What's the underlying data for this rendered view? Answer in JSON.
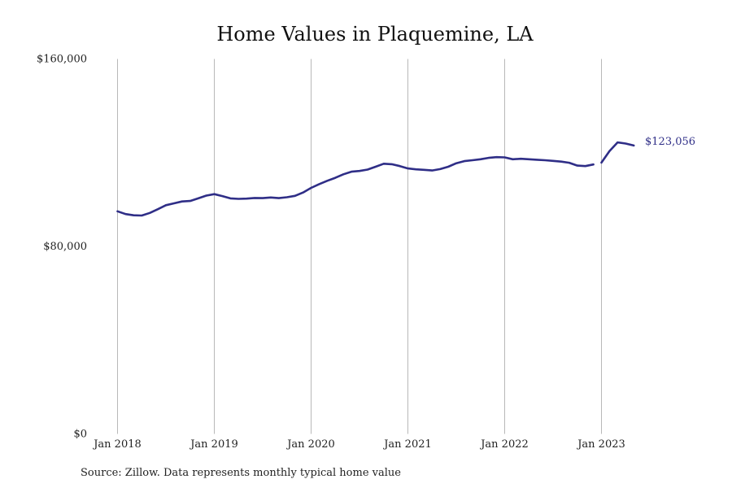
{
  "chart_data": {
    "type": "line",
    "title": "Home Values in Plaquemine, LA",
    "xlabel": "",
    "ylabel": "",
    "source": "Source: Zillow. Data represents monthly typical home value",
    "ylim": [
      0,
      160000
    ],
    "y_ticks": [
      {
        "value": 0,
        "label": "$0"
      },
      {
        "value": 80000,
        "label": "$80,000"
      },
      {
        "value": 160000,
        "label": "$160,000"
      }
    ],
    "x_ticks": [
      {
        "date": "2018-01",
        "label": "Jan 2018"
      },
      {
        "date": "2019-01",
        "label": "Jan 2019"
      },
      {
        "date": "2020-01",
        "label": "Jan 2020"
      },
      {
        "date": "2021-01",
        "label": "Jan 2021"
      },
      {
        "date": "2022-01",
        "label": "Jan 2022"
      },
      {
        "date": "2023-01",
        "label": "Jan 2023"
      }
    ],
    "x_grid": true,
    "y_grid": false,
    "line_color": "#2f2e87",
    "end_label": "$123,056",
    "series": [
      {
        "segments": [
          {
            "x": [
              "2018-01",
              "2018-02",
              "2018-03",
              "2018-04",
              "2018-05",
              "2018-06",
              "2018-07",
              "2018-08",
              "2018-09",
              "2018-10",
              "2018-11",
              "2018-12",
              "2019-01",
              "2019-02",
              "2019-03",
              "2019-04",
              "2019-05",
              "2019-06",
              "2019-07",
              "2019-08",
              "2019-09",
              "2019-10",
              "2019-11",
              "2019-12",
              "2020-01",
              "2020-02",
              "2020-03",
              "2020-04",
              "2020-05",
              "2020-06",
              "2020-07",
              "2020-08",
              "2020-09",
              "2020-10",
              "2020-11",
              "2020-12",
              "2021-01",
              "2021-02",
              "2021-03",
              "2021-04",
              "2021-05",
              "2021-06",
              "2021-07",
              "2021-08",
              "2021-09",
              "2021-10",
              "2021-11",
              "2021-12",
              "2022-01",
              "2022-02",
              "2022-03",
              "2022-04",
              "2022-05",
              "2022-06",
              "2022-07",
              "2022-08",
              "2022-09",
              "2022-10",
              "2022-11",
              "2022-12"
            ],
            "y": [
              95000,
              93800,
              93300,
              93200,
              94300,
              95900,
              97600,
              98400,
              99200,
              99400,
              100500,
              101700,
              102300,
              101500,
              100500,
              100300,
              100400,
              100700,
              100600,
              100900,
              100600,
              101000,
              101600,
              103000,
              105000,
              106600,
              108000,
              109300,
              110800,
              111900,
              112200,
              112800,
              114000,
              115300,
              115100,
              114300,
              113300,
              112900,
              112700,
              112400,
              113000,
              114000,
              115500,
              116400,
              116800,
              117200,
              117800,
              118100,
              118000,
              117200,
              117400,
              117200,
              117000,
              116800,
              116500,
              116200,
              115700,
              114500,
              114300,
              115000
            ],
            "note": ""
          },
          {
            "x": [
              "2023-01",
              "2023-02",
              "2023-03",
              "2023-04",
              "2023-05"
            ],
            "y": [
              115800,
              120700,
              124400,
              123900,
              123056
            ]
          }
        ]
      }
    ]
  }
}
